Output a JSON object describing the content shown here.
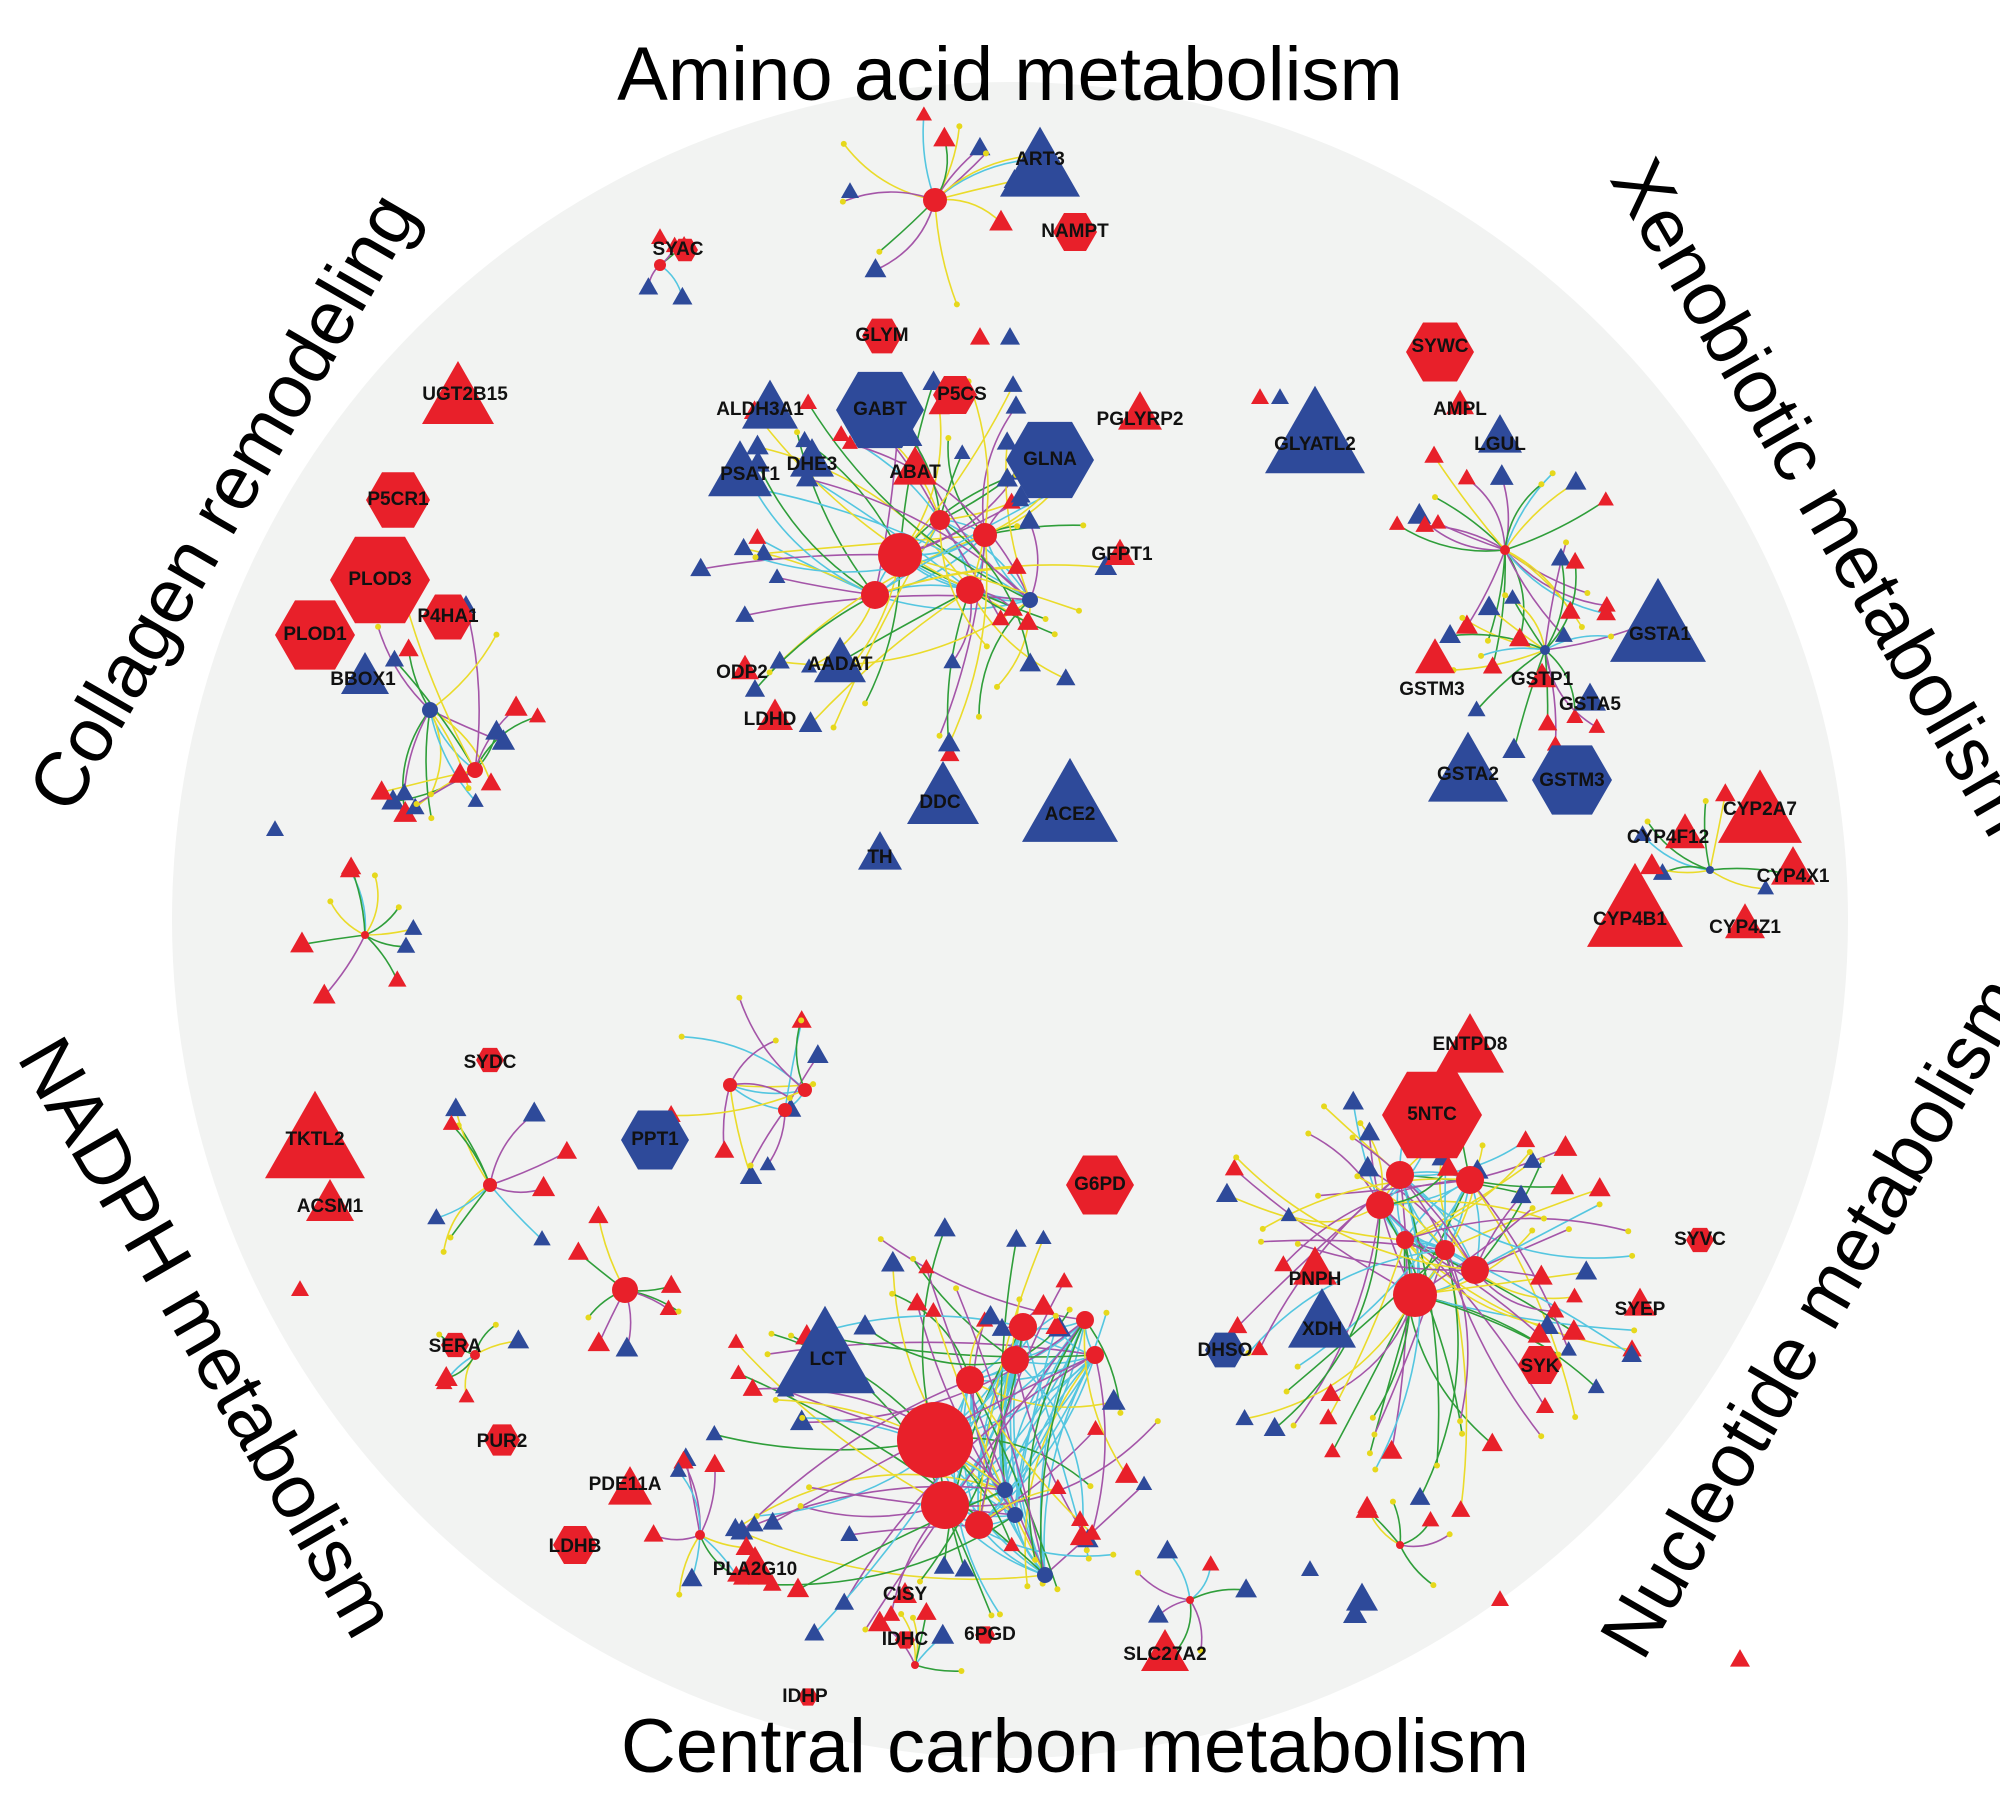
{
  "colors": {
    "background_circle": "#f2f3f2",
    "red_node": "#e8202a",
    "blue_node": "#2e4a9a",
    "edge_green": "#2f9e3a",
    "edge_purple": "#a455a8",
    "edge_yellow": "#eadb2a",
    "edge_cyan": "#54c6e0",
    "edge_red": "#d92828"
  },
  "legend_note": "",
  "regions": [
    {
      "id": "amino",
      "label": "Amino acid metabolism"
    },
    {
      "id": "xeno",
      "label": "Xenobiotic metabolism"
    },
    {
      "id": "nucleo",
      "label": "Nucleotide metabolism"
    },
    {
      "id": "central",
      "label": "Central carbon metabolism"
    },
    {
      "id": "nadph",
      "label": "NADPH metabolism"
    },
    {
      "id": "collagen",
      "label": "Collagen remodeling"
    }
  ],
  "gene_labels": [
    {
      "text": "ART3"
    },
    {
      "text": "NAMPT"
    },
    {
      "text": "SYAC"
    },
    {
      "text": "GLYM"
    },
    {
      "text": "ALDH3A1"
    },
    {
      "text": "GABT"
    },
    {
      "text": "P5CS"
    },
    {
      "text": "PGLYRP2"
    },
    {
      "text": "GLNA"
    },
    {
      "text": "PSAT1"
    },
    {
      "text": "DHE3"
    },
    {
      "text": "ABAT"
    },
    {
      "text": "GFPT1"
    },
    {
      "text": "ODP2"
    },
    {
      "text": "AADAT"
    },
    {
      "text": "LDHD"
    },
    {
      "text": "DDC"
    },
    {
      "text": "ACE2"
    },
    {
      "text": "TH"
    },
    {
      "text": "GLYATL2"
    },
    {
      "text": "SYWC"
    },
    {
      "text": "AMPL"
    },
    {
      "text": "LGUL"
    },
    {
      "text": "GSTA1"
    },
    {
      "text": "GSTM3"
    },
    {
      "text": "GSTP1"
    },
    {
      "text": "GSTA5"
    },
    {
      "text": "GSTA2"
    },
    {
      "text": "GSTM3"
    },
    {
      "text": "CYP2A7"
    },
    {
      "text": "CYP4F12"
    },
    {
      "text": "CYP4X1"
    },
    {
      "text": "CYP4B1"
    },
    {
      "text": "CYP4Z1"
    },
    {
      "text": "UGT2B15"
    },
    {
      "text": "P5CR1"
    },
    {
      "text": "PLOD3"
    },
    {
      "text": "P4HA1"
    },
    {
      "text": "PLOD1"
    },
    {
      "text": "BBOX1"
    },
    {
      "text": "ENTPD8"
    },
    {
      "text": "5NTC"
    },
    {
      "text": "SYVC"
    },
    {
      "text": "PNPH"
    },
    {
      "text": "XDH"
    },
    {
      "text": "SYEP"
    },
    {
      "text": "SYK"
    },
    {
      "text": "SYDC"
    },
    {
      "text": "PPT1"
    },
    {
      "text": "TKTL2"
    },
    {
      "text": "ACSM1"
    },
    {
      "text": "G6PD"
    },
    {
      "text": "LCT"
    },
    {
      "text": "DHSO"
    },
    {
      "text": "SERA"
    },
    {
      "text": "PUR2"
    },
    {
      "text": "PDE11A"
    },
    {
      "text": "LDHB"
    },
    {
      "text": "PLA2G10"
    },
    {
      "text": "CISY"
    },
    {
      "text": "IDHC"
    },
    {
      "text": "6PGD"
    },
    {
      "text": "IDHP"
    },
    {
      "text": "SLC27A2"
    }
  ],
  "clusters": [
    {
      "id": "aa-main",
      "hubs": [
        {
          "c": "red",
          "shape": "circle",
          "size": 22,
          "dx": 0,
          "dy": 0
        },
        {
          "c": "red",
          "shape": "circle",
          "size": 14,
          "dx": 70,
          "dy": 35
        },
        {
          "c": "red",
          "shape": "circle",
          "size": 14,
          "dx": -25,
          "dy": 40
        },
        {
          "c": "red",
          "shape": "circle",
          "size": 12,
          "dx": 85,
          "dy": -20
        },
        {
          "c": "blue",
          "shape": "circle",
          "size": 8,
          "dx": 130,
          "dy": 45
        },
        {
          "c": "red",
          "shape": "circle",
          "size": 10,
          "dx": 40,
          "dy": -35
        }
      ],
      "leaves": 70,
      "radius": 210,
      "seed": 11
    },
    {
      "id": "aa-top",
      "hubs": [
        {
          "c": "red",
          "shape": "circle",
          "size": 12,
          "dx": 0,
          "dy": 0
        }
      ],
      "leaves": 14,
      "radius": 110,
      "seed": 3
    },
    {
      "id": "syac",
      "hubs": [
        {
          "c": "red",
          "shape": "circle",
          "size": 6,
          "dx": 0,
          "dy": 0
        }
      ],
      "leaves": 4,
      "radius": 40,
      "seed": 5
    },
    {
      "id": "xeno-top",
      "hubs": [
        {
          "c": "red",
          "shape": "circle",
          "size": 5,
          "dx": 0,
          "dy": 0
        }
      ],
      "leaves": 22,
      "radius": 120,
      "seed": 7
    },
    {
      "id": "xeno-gst",
      "hubs": [
        {
          "c": "blue",
          "shape": "circle",
          "size": 5,
          "dx": 0,
          "dy": 0
        }
      ],
      "leaves": 18,
      "radius": 110,
      "seed": 9
    },
    {
      "id": "cyp",
      "hubs": [
        {
          "c": "blue",
          "shape": "circle",
          "size": 4,
          "dx": 0,
          "dy": 0
        }
      ],
      "leaves": 8,
      "radius": 80,
      "seed": 13
    },
    {
      "id": "collagen",
      "hubs": [
        {
          "c": "blue",
          "shape": "circle",
          "size": 8,
          "dx": 0,
          "dy": 0
        },
        {
          "c": "red",
          "shape": "circle",
          "size": 8,
          "dx": 45,
          "dy": 60
        }
      ],
      "leaves": 22,
      "radius": 110,
      "seed": 15
    },
    {
      "id": "nucleo",
      "hubs": [
        {
          "c": "red",
          "shape": "circle",
          "size": 22,
          "dx": 0,
          "dy": 0
        },
        {
          "c": "red",
          "shape": "circle",
          "size": 14,
          "dx": -35,
          "dy": -90
        },
        {
          "c": "red",
          "shape": "circle",
          "size": 14,
          "dx": 60,
          "dy": -25
        },
        {
          "c": "red",
          "shape": "circle",
          "size": 14,
          "dx": 55,
          "dy": -115
        },
        {
          "c": "red",
          "shape": "circle",
          "size": 14,
          "dx": -15,
          "dy": -120
        },
        {
          "c": "red",
          "shape": "circle",
          "size": 10,
          "dx": 30,
          "dy": -45
        },
        {
          "c": "red",
          "shape": "circle",
          "size": 9,
          "dx": -10,
          "dy": -55
        }
      ],
      "leaves": 80,
      "radius": 230,
      "seed": 17
    },
    {
      "id": "central",
      "hubs": [
        {
          "c": "red",
          "shape": "circle",
          "size": 38,
          "dx": 0,
          "dy": 0
        },
        {
          "c": "red",
          "shape": "circle",
          "size": 24,
          "dx": 10,
          "dy": 65
        },
        {
          "c": "red",
          "shape": "circle",
          "size": 14,
          "dx": 35,
          "dy": -60
        },
        {
          "c": "red",
          "shape": "circle",
          "size": 14,
          "dx": 80,
          "dy": -80
        },
        {
          "c": "red",
          "shape": "circle",
          "size": 14,
          "dx": 88,
          "dy": -113
        },
        {
          "c": "red",
          "shape": "circle",
          "size": 14,
          "dx": 44,
          "dy": 85
        },
        {
          "c": "red",
          "shape": "circle",
          "size": 9,
          "dx": 150,
          "dy": -120
        },
        {
          "c": "red",
          "shape": "circle",
          "size": 9,
          "dx": 160,
          "dy": -85
        },
        {
          "c": "blue",
          "shape": "circle",
          "size": 8,
          "dx": 70,
          "dy": 50
        },
        {
          "c": "blue",
          "shape": "circle",
          "size": 8,
          "dx": 80,
          "dy": 75
        },
        {
          "c": "blue",
          "shape": "circle",
          "size": 8,
          "dx": 110,
          "dy": 135
        }
      ],
      "leaves": 75,
      "radius": 230,
      "seed": 19
    },
    {
      "id": "ppt1",
      "hubs": [
        {
          "c": "red",
          "shape": "circle",
          "size": 7,
          "dx": 0,
          "dy": 0
        },
        {
          "c": "red",
          "shape": "circle",
          "size": 7,
          "dx": 55,
          "dy": 25
        },
        {
          "c": "red",
          "shape": "circle",
          "size": 7,
          "dx": 75,
          "dy": 5
        }
      ],
      "leaves": 14,
      "radius": 100,
      "seed": 21
    },
    {
      "id": "nadph-left",
      "hubs": [
        {
          "c": "red",
          "shape": "circle",
          "size": 7,
          "dx": 0,
          "dy": 0
        }
      ],
      "leaves": 10,
      "radius": 90,
      "seed": 23
    },
    {
      "id": "nadph-mid",
      "hubs": [
        {
          "c": "red",
          "shape": "circle",
          "size": 13,
          "dx": 0,
          "dy": 0
        }
      ],
      "leaves": 8,
      "radius": 80,
      "seed": 25
    },
    {
      "id": "pde",
      "hubs": [
        {
          "c": "red",
          "shape": "circle",
          "size": 5,
          "dx": 0,
          "dy": 0
        }
      ],
      "leaves": 10,
      "radius": 80,
      "seed": 27
    },
    {
      "id": "sera",
      "hubs": [
        {
          "c": "red",
          "shape": "circle",
          "size": 5,
          "dx": 0,
          "dy": 0
        }
      ],
      "leaves": 6,
      "radius": 55,
      "seed": 29
    },
    {
      "id": "left-mid",
      "hubs": [
        {
          "c": "red",
          "shape": "circle",
          "size": 4,
          "dx": 0,
          "dy": 0
        }
      ],
      "leaves": 10,
      "radius": 75,
      "seed": 31
    },
    {
      "id": "slc",
      "hubs": [
        {
          "c": "red",
          "shape": "circle",
          "size": 4,
          "dx": 0,
          "dy": 0
        }
      ],
      "leaves": 7,
      "radius": 60,
      "seed": 33
    },
    {
      "id": "bottom-right",
      "hubs": [
        {
          "c": "red",
          "shape": "circle",
          "size": 4,
          "dx": 0,
          "dy": 0
        }
      ],
      "leaves": 6,
      "radius": 70,
      "seed": 35
    },
    {
      "id": "idh",
      "hubs": [
        {
          "c": "red",
          "shape": "circle",
          "size": 4,
          "dx": 0,
          "dy": 0
        }
      ],
      "leaves": 6,
      "radius": 55,
      "seed": 37
    }
  ],
  "scattered": [
    {
      "c": "red",
      "shape": "tri",
      "size": 9
    },
    {
      "c": "blue",
      "shape": "tri",
      "size": 9
    },
    {
      "c": "red",
      "shape": "tri",
      "size": 10
    },
    {
      "c": "blue",
      "shape": "tri",
      "size": 10
    },
    {
      "c": "red",
      "shape": "tri",
      "size": 9
    },
    {
      "c": "blue",
      "shape": "tri",
      "size": 9
    },
    {
      "c": "red",
      "shape": "tri",
      "size": 10
    },
    {
      "c": "blue",
      "shape": "tri",
      "size": 12
    },
    {
      "c": "red",
      "shape": "tri",
      "size": 9
    },
    {
      "c": "blue",
      "shape": "tri",
      "size": 9
    },
    {
      "c": "red",
      "shape": "tri",
      "size": 9
    },
    {
      "c": "blue",
      "shape": "tri",
      "size": 16
    },
    {
      "c": "red",
      "shape": "tri",
      "size": 9
    },
    {
      "c": "blue",
      "shape": "tri",
      "size": 9
    }
  ]
}
